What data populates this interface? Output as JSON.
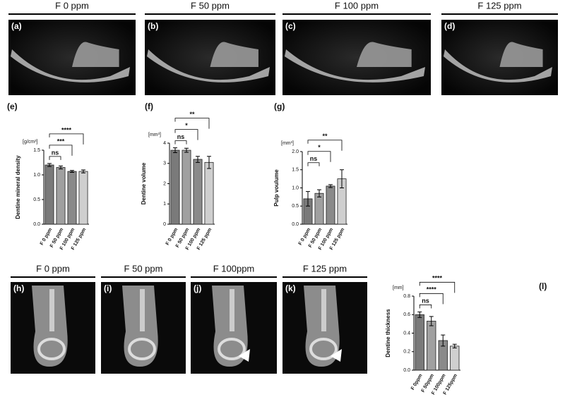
{
  "top_images": {
    "headers": [
      "F 0 ppm",
      "F 50 ppm",
      "F 100 ppm",
      "F 125 ppm"
    ],
    "labels": [
      "(a)",
      "(b)",
      "(c)",
      "(d)"
    ]
  },
  "bottom_images": {
    "headers": [
      "F 0 ppm",
      "F 50 ppm",
      "F 100ppm",
      "F 125 ppm"
    ],
    "labels": [
      "(h)",
      "(i)",
      "(j)",
      "(k)"
    ]
  },
  "chart_data": [
    {
      "type": "bar",
      "panel": "(e)",
      "unit": "[g/cm³]",
      "y_label": "Dentine mineral density",
      "categories": [
        "F 0 ppm",
        "F 50 ppm",
        "F 100 ppm",
        "F 125 ppm"
      ],
      "values": [
        1.2,
        1.15,
        1.07,
        1.07
      ],
      "errors": [
        0.03,
        0.03,
        0.02,
        0.03
      ],
      "colors": [
        "#7a7a7a",
        "#a0a0a0",
        "#8a8a8a",
        "#cfcfcf"
      ],
      "ylim": [
        0,
        1.5
      ],
      "yticks": [
        {
          "value": 0,
          "label": "0.0"
        },
        {
          "value": 0.5,
          "label": "0.5"
        },
        {
          "value": 1,
          "label": "1.0"
        },
        {
          "value": 1.5,
          "label": "1.5"
        }
      ],
      "annotations": [
        "ns",
        "***",
        "****"
      ]
    },
    {
      "type": "bar",
      "panel": "(f)",
      "unit": "[mm³]",
      "y_label": "Dentine volume",
      "categories": [
        "F 0 ppm",
        "F 50 ppm",
        "F 100 ppm",
        "F 125 ppm"
      ],
      "values": [
        3.65,
        3.65,
        3.2,
        3.05
      ],
      "errors": [
        0.12,
        0.1,
        0.15,
        0.3
      ],
      "colors": [
        "#7a7a7a",
        "#a0a0a0",
        "#8a8a8a",
        "#cfcfcf"
      ],
      "ylim": [
        0,
        4
      ],
      "yticks": [
        0,
        1,
        2,
        3,
        4
      ],
      "annotations": [
        "ns",
        "*",
        "**"
      ]
    },
    {
      "type": "bar",
      "panel": "(g)",
      "unit": "[mm³]",
      "y_label": "Pulp voulume",
      "categories": [
        "F 0 ppm",
        "F 50 ppm",
        "F 100 ppm",
        "F 125 ppm"
      ],
      "values": [
        0.7,
        0.85,
        1.05,
        1.25
      ],
      "errors": [
        0.2,
        0.1,
        0.04,
        0.25
      ],
      "colors": [
        "#7a7a7a",
        "#a0a0a0",
        "#8a8a8a",
        "#cfcfcf"
      ],
      "ylim": [
        0,
        2
      ],
      "yticks": [
        {
          "value": 0,
          "label": "0.0"
        },
        {
          "value": 0.5,
          "label": "0.5"
        },
        {
          "value": 1,
          "label": "1.0"
        },
        {
          "value": 1.5,
          "label": "1.5"
        },
        {
          "value": 2,
          "label": "2.0"
        }
      ],
      "annotations": [
        "ns",
        "*",
        "**"
      ]
    },
    {
      "type": "bar",
      "panel": "(l)",
      "unit": "[mm]",
      "y_label": "Dentine thickness",
      "categories": [
        "F 0ppm",
        "F 50ppm",
        "F 100ppm",
        "F 125ppm"
      ],
      "values": [
        0.6,
        0.53,
        0.32,
        0.26
      ],
      "errors": [
        0.03,
        0.05,
        0.06,
        0.02
      ],
      "colors": [
        "#7a7a7a",
        "#a0a0a0",
        "#8a8a8a",
        "#cfcfcf"
      ],
      "ylim": [
        0,
        0.8
      ],
      "yticks": [
        {
          "value": 0,
          "label": "0.0"
        },
        {
          "value": 0.2,
          "label": "0.2"
        },
        {
          "value": 0.4,
          "label": "0.4"
        },
        {
          "value": 0.6,
          "label": "0.6"
        },
        {
          "value": 0.8,
          "label": "0.8"
        }
      ],
      "annotations": [
        "ns",
        "****",
        "****"
      ]
    }
  ]
}
